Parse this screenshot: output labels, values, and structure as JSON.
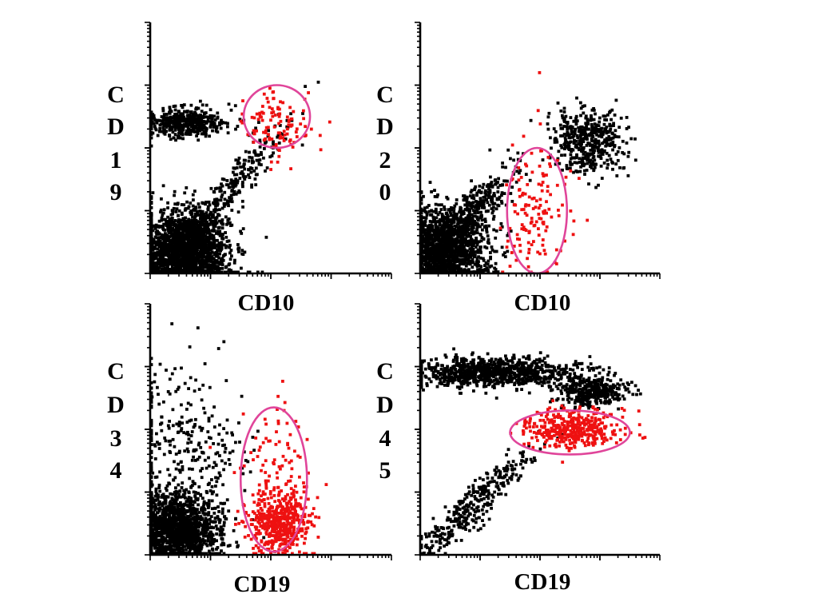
{
  "colors": {
    "population": "#000000",
    "highlighted": "#ee1111",
    "gate": "#e0459a"
  },
  "chart_data": [
    {
      "type": "scatter",
      "ylabel": "CD19",
      "xlabel": "CD10",
      "xscale": "log",
      "yscale": "log",
      "xlim": [
        0,
        4
      ],
      "ylim": [
        0,
        4
      ],
      "gate": {
        "cx": 2.1,
        "cy": 2.5,
        "rx": 0.55,
        "ry": 0.5,
        "shape": "ellipse"
      },
      "clusters": [
        {
          "label": "black-low",
          "color": "black",
          "cx": 0.6,
          "cy": 0.35,
          "sx": 0.35,
          "sy": 0.32,
          "n": 2000
        },
        {
          "label": "black-cd19pos",
          "color": "black",
          "cx": 0.6,
          "cy": 2.4,
          "sx": 0.35,
          "sy": 0.12,
          "n": 450
        },
        {
          "label": "scatter",
          "color": "black",
          "cx": 1.2,
          "cy": 1.2,
          "sx": 0.55,
          "sy": 0.65,
          "n": 300
        },
        {
          "label": "gated-red",
          "color": "red",
          "cx": 2.15,
          "cy": 2.35,
          "sx": 0.3,
          "sy": 0.28,
          "n": 110
        }
      ]
    },
    {
      "type": "scatter",
      "ylabel": "CD20",
      "xlabel": "CD10",
      "xscale": "log",
      "yscale": "log",
      "xlim": [
        0,
        4
      ],
      "ylim": [
        0,
        4
      ],
      "gate": {
        "cx": 1.95,
        "cy": 1.0,
        "rx": 0.5,
        "ry": 1.0,
        "shape": "ellipse"
      },
      "clusters": [
        {
          "label": "black-low",
          "color": "black",
          "cx": 0.35,
          "cy": 0.35,
          "sx": 0.4,
          "sy": 0.35,
          "n": 1700
        },
        {
          "label": "black-diagonal",
          "color": "black",
          "cx": 0.9,
          "cy": 1.0,
          "sx": 0.35,
          "sy": 0.35,
          "n": 300
        },
        {
          "label": "black-high",
          "color": "black",
          "cx": 2.8,
          "cy": 2.1,
          "sx": 0.3,
          "sy": 0.25,
          "n": 450
        },
        {
          "label": "gated-red",
          "color": "red",
          "cx": 1.95,
          "cy": 1.0,
          "sx": 0.25,
          "sy": 0.55,
          "n": 140
        }
      ]
    },
    {
      "type": "scatter",
      "ylabel": "CD34",
      "xlabel": "CD19",
      "xscale": "log",
      "yscale": "log",
      "xlim": [
        0,
        4
      ],
      "ylim": [
        0,
        4
      ],
      "gate": {
        "cx": 2.05,
        "cy": 1.2,
        "rx": 0.55,
        "ry": 1.15,
        "shape": "ellipse"
      },
      "clusters": [
        {
          "label": "black-low",
          "color": "black",
          "cx": 0.45,
          "cy": 0.4,
          "sx": 0.35,
          "sy": 0.3,
          "n": 1500
        },
        {
          "label": "black-scatter",
          "color": "black",
          "cx": 0.6,
          "cy": 1.7,
          "sx": 0.5,
          "sy": 0.7,
          "n": 300
        },
        {
          "label": "gated-red-dense",
          "color": "red",
          "cx": 2.15,
          "cy": 0.5,
          "sx": 0.25,
          "sy": 0.25,
          "n": 500
        },
        {
          "label": "gated-red-sparse",
          "color": "red",
          "cx": 2.1,
          "cy": 1.5,
          "sx": 0.3,
          "sy": 0.55,
          "n": 80
        }
      ]
    },
    {
      "type": "scatter",
      "ylabel": "CD45",
      "xlabel": "CD19",
      "xscale": "log",
      "yscale": "log",
      "xlim": [
        0,
        4
      ],
      "ylim": [
        0,
        4
      ],
      "gate": {
        "cx": 2.5,
        "cy": 1.95,
        "rx": 1.0,
        "ry": 0.35,
        "shape": "ellipse"
      },
      "clusters": [
        {
          "label": "black-top",
          "color": "black",
          "cx": 1.2,
          "cy": 2.9,
          "sx": 0.7,
          "sy": 0.12,
          "n": 900
        },
        {
          "label": "black-top-right",
          "color": "black",
          "cx": 2.85,
          "cy": 2.6,
          "sx": 0.3,
          "sy": 0.12,
          "n": 350
        },
        {
          "label": "black-diagonal",
          "color": "black",
          "cx": 0.9,
          "cy": 0.8,
          "sx": 0.5,
          "sy": 0.5,
          "n": 350
        },
        {
          "label": "gated-red",
          "color": "red",
          "cx": 2.55,
          "cy": 2.0,
          "sx": 0.4,
          "sy": 0.15,
          "n": 380
        }
      ]
    }
  ]
}
